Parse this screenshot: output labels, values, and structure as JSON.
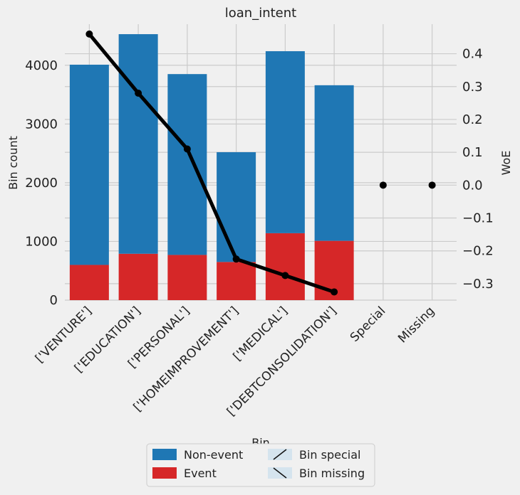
{
  "chart_data": {
    "type": "bar",
    "title": "loan_intent",
    "xlabel": "Bin",
    "ylabel": "Bin count",
    "y2label": "WoE",
    "categories": [
      "['VENTURE']",
      "['EDUCATION']",
      "['PERSONAL']",
      "['HOMEIMPROVEMENT']",
      "['MEDICAL']",
      "['DEBTCONSOLIDATION']",
      "Special",
      "Missing"
    ],
    "series": [
      {
        "name": "Non-event",
        "color": "#1f77b4",
        "values": [
          3410,
          3740,
          3080,
          1870,
          3100,
          2650,
          0,
          0
        ]
      },
      {
        "name": "Event",
        "color": "#d62728",
        "values": [
          600,
          790,
          770,
          650,
          1140,
          1010,
          0,
          0
        ]
      }
    ],
    "woe": {
      "color": "#000000",
      "values": [
        0.46,
        0.28,
        0.11,
        -0.225,
        -0.275,
        -0.325,
        0.0,
        0.0
      ]
    },
    "ylim": [
      0,
      4700
    ],
    "y2lim": [
      -0.35,
      0.49
    ],
    "yticks": [
      0,
      1000,
      2000,
      3000,
      4000
    ],
    "y2ticks": [
      -0.3,
      -0.2,
      -0.1,
      0.0,
      0.1,
      0.2,
      0.3,
      0.4
    ],
    "y2tick_labels": [
      "−0.3",
      "−0.2",
      "−0.1",
      "0.0",
      "0.1",
      "0.2",
      "0.3",
      "0.4"
    ],
    "grid": true,
    "legend": {
      "placement": "bottom-center",
      "entries": [
        {
          "label": "Non-event",
          "swatch": "solid",
          "color": "#1f77b4"
        },
        {
          "label": "Event",
          "swatch": "solid",
          "color": "#d62728"
        },
        {
          "label": "Bin special",
          "swatch": "hatch-forward",
          "color": "#d5e4ee"
        },
        {
          "label": "Bin missing",
          "swatch": "hatch-back",
          "color": "#d5e4ee"
        }
      ]
    }
  }
}
